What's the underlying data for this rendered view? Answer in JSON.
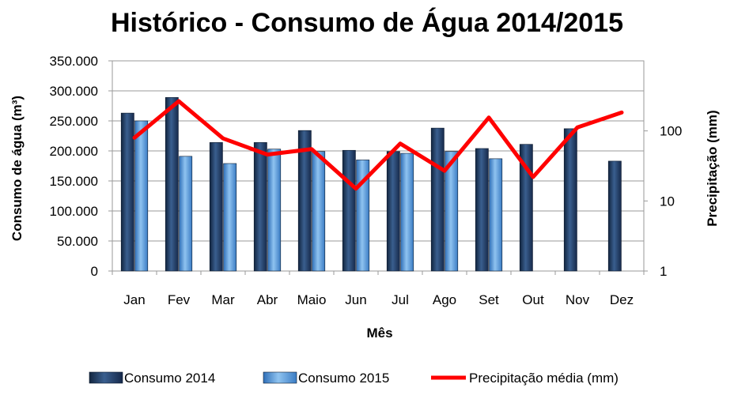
{
  "chart_data": {
    "type": "bar",
    "title": "Histórico - Consumo de Água 2014/2015",
    "xlabel": "Mês",
    "ylabel": "Consumo de água (m³)",
    "y2label": "Precipitação (mm)",
    "categories": [
      "Jan",
      "Fev",
      "Mar",
      "Abr",
      "Maio",
      "Jun",
      "Jul",
      "Ago",
      "Set",
      "Out",
      "Nov",
      "Dez"
    ],
    "ylim": [
      0,
      350000
    ],
    "yticks": [
      0,
      50000,
      100000,
      150000,
      200000,
      250000,
      300000,
      350000
    ],
    "ytick_labels": [
      "0",
      "50.000",
      "100.000",
      "150.000",
      "200.000",
      "250.000",
      "300.000",
      "350.000"
    ],
    "y2_scale": "log",
    "y2lim": [
      1,
      1000
    ],
    "y2ticks": [
      1,
      10,
      100
    ],
    "y2tick_labels": [
      "1",
      "10",
      "100"
    ],
    "grid": true,
    "legend_position": "bottom",
    "series": [
      {
        "name": "Consumo 2014",
        "kind": "bar",
        "axis": "left",
        "color": "#1F3B63",
        "values": [
          263000,
          289000,
          214000,
          214000,
          234000,
          201000,
          199000,
          238000,
          204000,
          211000,
          237000,
          183000
        ]
      },
      {
        "name": "Consumo 2015",
        "kind": "bar",
        "axis": "left",
        "color": "#4A90D9",
        "values": [
          250000,
          191000,
          179000,
          203000,
          199000,
          185000,
          196000,
          199000,
          187000,
          null,
          null,
          null
        ]
      },
      {
        "name": "Precipitação média (mm)",
        "kind": "line",
        "axis": "right",
        "color": "#FF0000",
        "values": [
          80,
          265,
          78,
          46,
          55,
          15,
          66,
          27,
          155,
          22,
          112,
          183
        ]
      }
    ]
  }
}
